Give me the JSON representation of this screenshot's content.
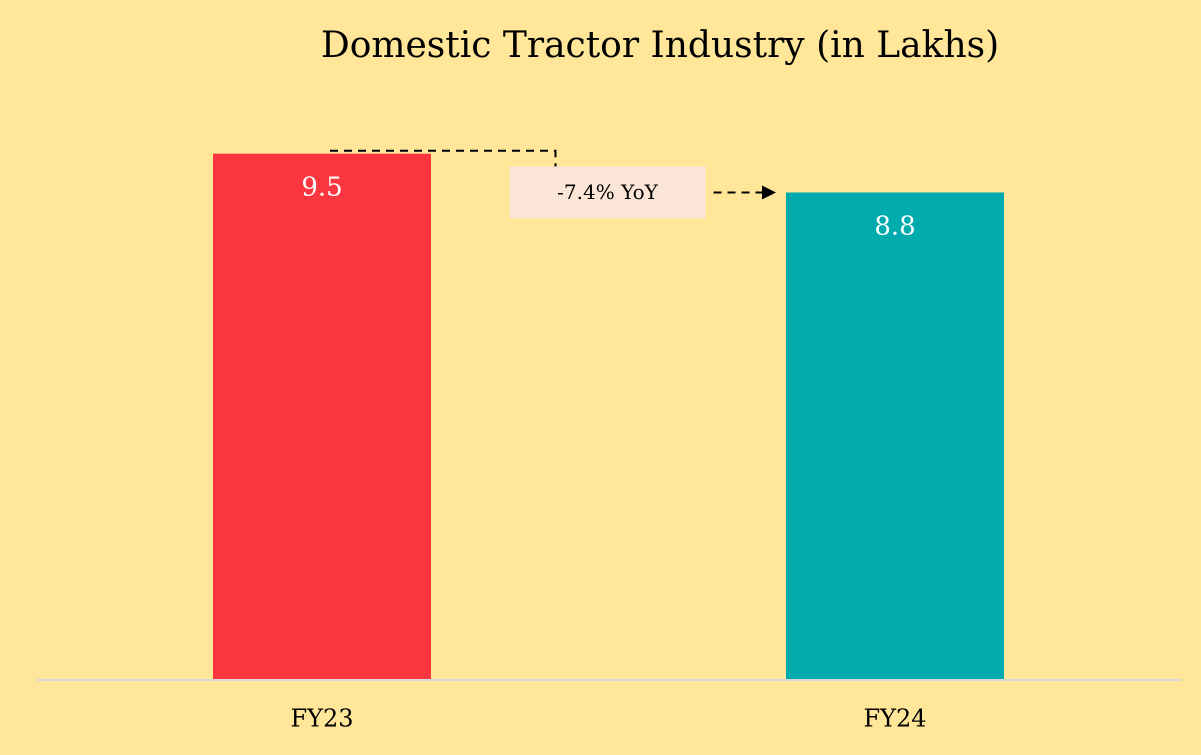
{
  "chart_data": {
    "type": "bar",
    "title": "Domestic Tractor Industry (in Lakhs)",
    "categories": [
      "FY23",
      "FY24"
    ],
    "values": [
      9.5,
      8.8
    ],
    "colors": [
      "#fc363f",
      "#00aaad"
    ],
    "annotation": "-7.4% YoY",
    "ylim": [
      0,
      10
    ]
  }
}
